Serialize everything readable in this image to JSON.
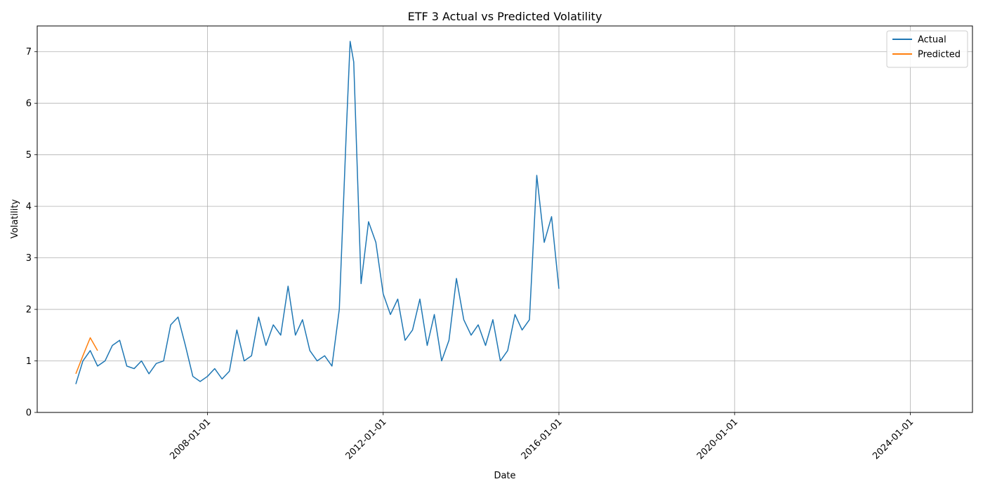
{
  "chart_data": {
    "type": "line",
    "title": "ETF 3 Actual vs Predicted Volatility",
    "xlabel": "Date",
    "ylabel": "Volatility",
    "xlim": [
      "2004-02-15",
      "2025-06-01"
    ],
    "ylim": [
      0,
      7.5
    ],
    "x_ticks": [
      "2008-01-01",
      "2012-01-01",
      "2016-01-01",
      "2020-01-01",
      "2024-01-01"
    ],
    "y_ticks": [
      0,
      1,
      2,
      3,
      4,
      5,
      6,
      7
    ],
    "grid": true,
    "legend_position": "top-right",
    "series": [
      {
        "name": "Actual",
        "color": "#1f77b4",
        "points": [
          [
            "2005-01-01",
            0.55
          ],
          [
            "2005-03-01",
            1.0
          ],
          [
            "2005-05-01",
            1.2
          ],
          [
            "2005-07-01",
            0.9
          ],
          [
            "2005-09-01",
            1.0
          ],
          [
            "2005-11-01",
            1.3
          ],
          [
            "2006-01-01",
            1.4
          ],
          [
            "2006-03-01",
            0.9
          ],
          [
            "2006-05-01",
            0.85
          ],
          [
            "2006-07-01",
            1.0
          ],
          [
            "2006-09-01",
            0.75
          ],
          [
            "2006-11-01",
            0.95
          ],
          [
            "2007-01-01",
            1.0
          ],
          [
            "2007-03-01",
            1.7
          ],
          [
            "2007-05-01",
            1.85
          ],
          [
            "2007-07-01",
            1.3
          ],
          [
            "2007-09-01",
            0.7
          ],
          [
            "2007-11-01",
            0.6
          ],
          [
            "2008-01-01",
            0.7
          ],
          [
            "2008-03-01",
            0.85
          ],
          [
            "2008-05-01",
            0.65
          ],
          [
            "2008-07-01",
            0.8
          ],
          [
            "2008-09-01",
            1.6
          ],
          [
            "2008-11-01",
            1.0
          ],
          [
            "2009-01-01",
            1.1
          ],
          [
            "2009-03-01",
            1.85
          ],
          [
            "2009-05-01",
            1.3
          ],
          [
            "2009-07-01",
            1.7
          ],
          [
            "2009-09-01",
            1.5
          ],
          [
            "2009-11-01",
            2.45
          ],
          [
            "2010-01-01",
            1.5
          ],
          [
            "2010-03-01",
            1.8
          ],
          [
            "2010-05-01",
            1.2
          ],
          [
            "2010-07-01",
            1.0
          ],
          [
            "2010-09-01",
            1.1
          ],
          [
            "2010-11-01",
            0.9
          ],
          [
            "2011-01-01",
            2.0
          ],
          [
            "2011-03-01",
            5.5
          ],
          [
            "2011-04-01",
            7.2
          ],
          [
            "2011-05-01",
            6.8
          ],
          [
            "2011-07-01",
            2.5
          ],
          [
            "2011-09-01",
            3.7
          ],
          [
            "2011-11-01",
            3.3
          ],
          [
            "2012-01-01",
            2.3
          ],
          [
            "2012-03-01",
            1.9
          ],
          [
            "2012-05-01",
            2.2
          ],
          [
            "2012-07-01",
            1.4
          ],
          [
            "2012-09-01",
            1.6
          ],
          [
            "2012-11-01",
            2.2
          ],
          [
            "2013-01-01",
            1.3
          ],
          [
            "2013-03-01",
            1.9
          ],
          [
            "2013-05-01",
            1.0
          ],
          [
            "2013-07-01",
            1.4
          ],
          [
            "2013-09-01",
            2.6
          ],
          [
            "2013-11-01",
            1.8
          ],
          [
            "2014-01-01",
            1.5
          ],
          [
            "2014-03-01",
            1.7
          ],
          [
            "2014-05-01",
            1.3
          ],
          [
            "2014-07-01",
            1.8
          ],
          [
            "2014-09-01",
            1.0
          ],
          [
            "2014-11-01",
            1.2
          ],
          [
            "2015-01-01",
            1.9
          ],
          [
            "2015-03-01",
            1.6
          ],
          [
            "2015-05-01",
            1.8
          ],
          [
            "2015-07-01",
            4.6
          ],
          [
            "2015-09-01",
            3.3
          ],
          [
            "2015-11-01",
            3.8
          ],
          [
            "2016-01-01",
            2.4
          ]
        ]
      },
      {
        "name": "Predicted",
        "color": "#ff7f0e",
        "points": [
          [
            "2005-01-01",
            0.75
          ],
          [
            "2005-03-01",
            1.1
          ],
          [
            "2005-05-01",
            1.45
          ],
          [
            "2005-07-01",
            1.2
          ]
        ]
      }
    ]
  }
}
